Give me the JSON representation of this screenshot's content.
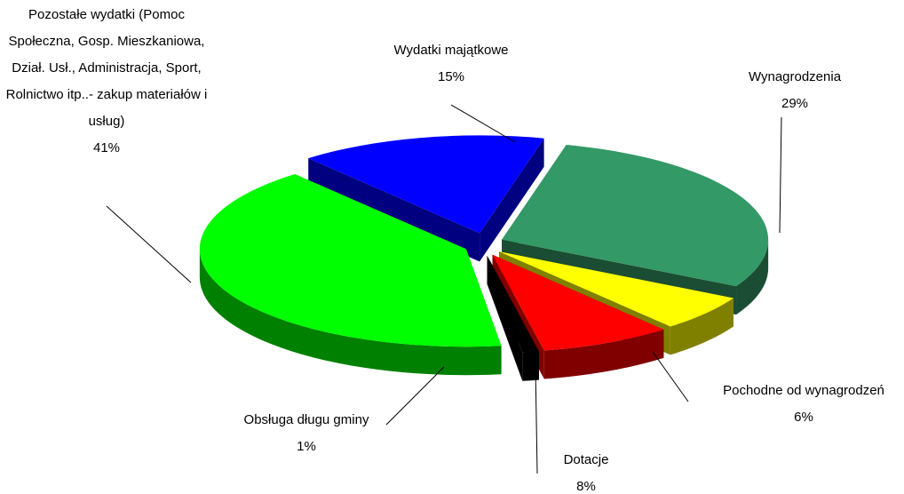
{
  "chart_data": {
    "type": "pie3d",
    "categories": [
      "Wydatki majątkowe",
      "Wynagrodzenia",
      "Pochodne od wynagrodzeń",
      "Dotacje",
      "Obsługa długu gminy",
      "Pozostałe wydatki (Pomoc Społeczna, Gosp. Mieszkaniowa, Dział. Usł., Administracja, Sport, Rolnictwo itp..- zakup materiałów i usług)"
    ],
    "values": [
      15,
      29,
      6,
      8,
      1,
      41
    ],
    "value_labels": [
      "15%",
      "29%",
      "6%",
      "8%",
      "1%",
      "41%"
    ],
    "colors": [
      "#0000ff",
      "#339966",
      "#ffff00",
      "#ff0000",
      "#000000",
      "#00ff00"
    ]
  }
}
